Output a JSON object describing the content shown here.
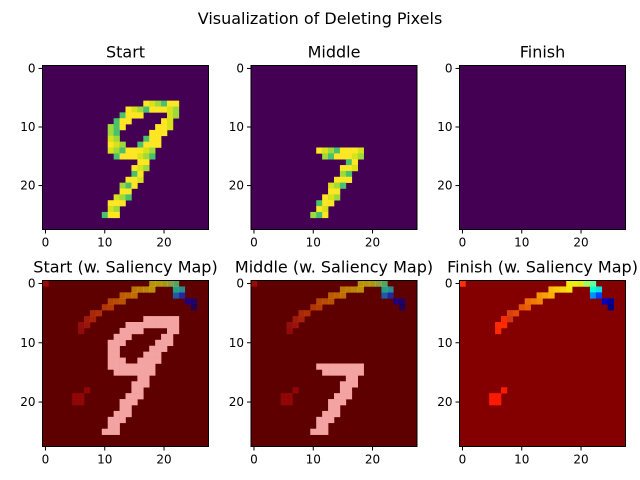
{
  "figure": {
    "title": "Visualization of Deleting Pixels"
  },
  "chart_data": [
    {
      "type": "heatmap",
      "title": "Start",
      "colormap": "viridis",
      "xticks": [
        0,
        10,
        20
      ],
      "yticks": [
        0,
        10,
        20
      ],
      "xlim": [
        -0.5,
        27.5
      ],
      "ylim": [
        27.5,
        -0.5
      ],
      "content": "handwritten digit 9 (full)",
      "overlay": "none"
    },
    {
      "type": "heatmap",
      "title": "Middle",
      "colormap": "viridis",
      "xticks": [
        0,
        10,
        20
      ],
      "yticks": [
        0,
        10,
        20
      ],
      "xlim": [
        -0.5,
        27.5
      ],
      "ylim": [
        27.5,
        -0.5
      ],
      "content": "digit with upper loop deleted (7-like stroke)",
      "overlay": "none"
    },
    {
      "type": "heatmap",
      "title": "Finish",
      "colormap": "viridis",
      "xticks": [
        0,
        10,
        20
      ],
      "yticks": [
        0,
        10,
        20
      ],
      "xlim": [
        -0.5,
        27.5
      ],
      "ylim": [
        27.5,
        -0.5
      ],
      "content": "all pixels deleted",
      "overlay": "none"
    },
    {
      "type": "heatmap",
      "title": "Start (w. Saliency Map)",
      "colormap": "jet",
      "xticks": [
        0,
        10,
        20
      ],
      "yticks": [
        0,
        10,
        20
      ],
      "xlim": [
        -0.5,
        27.5
      ],
      "ylim": [
        27.5,
        -0.5
      ],
      "content": "digit 9 in pink over saliency map",
      "overlay": "saliency"
    },
    {
      "type": "heatmap",
      "title": "Middle (w. Saliency Map)",
      "colormap": "jet",
      "xticks": [
        0,
        10,
        20
      ],
      "yticks": [
        0,
        10,
        20
      ],
      "xlim": [
        -0.5,
        27.5
      ],
      "ylim": [
        27.5,
        -0.5
      ],
      "content": "remaining stroke in pink over saliency map",
      "overlay": "saliency"
    },
    {
      "type": "heatmap",
      "title": "Finish (w. Saliency Map)",
      "colormap": "jet",
      "xticks": [
        0,
        10,
        20
      ],
      "yticks": [
        0,
        10,
        20
      ],
      "xlim": [
        -0.5,
        27.5
      ],
      "ylim": [
        27.5,
        -0.5
      ],
      "content": "saliency map only",
      "overlay": "saliency"
    }
  ],
  "colors": {
    "viridis_background": "#440154",
    "viridis_stroke": "#fde725",
    "saliency_background_dim": "#5e0000",
    "saliency_background_bright": "#840000",
    "digit_overlay": "#f4a3a3"
  }
}
